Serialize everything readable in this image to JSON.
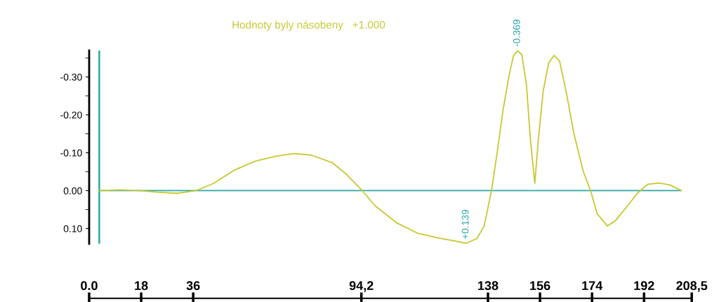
{
  "chart_data": {
    "type": "line",
    "title": "Hodnoty byly násobeny   +1.000",
    "x": [
      3.5,
      10.5,
      17.5,
      23.6,
      30.4,
      37.0,
      43.0,
      50.2,
      57.5,
      64.7,
      70.8,
      76.8,
      84.1,
      88.9,
      94.5,
      98.8,
      106.4,
      113.9,
      121.5,
      126.6,
      130.4,
      134.2,
      136.7,
      139.2,
      141.1,
      143.1,
      145.2,
      146.8,
      148.2,
      149.7,
      151.3,
      152.7,
      154.2,
      155.4,
      157.1,
      159.0,
      160.9,
      162.8,
      165.0,
      167.7,
      171.0,
      173.5,
      175.8,
      179.3,
      182.0,
      186.4,
      189.8,
      193.3,
      197.2,
      201.0,
      204.9
    ],
    "series": [
      {
        "color": "#c8c832",
        "values": [
          0,
          -0.002,
          0,
          0.004,
          0.007,
          0,
          -0.019,
          -0.054,
          -0.078,
          -0.091,
          -0.098,
          -0.094,
          -0.074,
          -0.044,
          0,
          0.039,
          0.085,
          0.113,
          0.126,
          0.133,
          0.139,
          0.126,
          0.093,
          0,
          -0.096,
          -0.207,
          -0.3,
          -0.356,
          -0.369,
          -0.359,
          -0.281,
          -0.133,
          -0.019,
          -0.133,
          -0.263,
          -0.337,
          -0.357,
          -0.341,
          -0.263,
          -0.152,
          -0.05,
          0,
          0.061,
          0.093,
          0.08,
          0.039,
          0.006,
          -0.017,
          -0.02,
          -0.015,
          0
        ]
      }
    ],
    "xlim": [
      0,
      208.5
    ],
    "xticks": [
      {
        "value": 0,
        "label": "0.0"
      },
      18,
      36,
      {
        "value": 94.2,
        "label": "94,2"
      },
      138,
      156,
      174,
      192,
      {
        "value": 208.5,
        "label": "208,5"
      }
    ],
    "ylim": [
      0.14,
      -0.37
    ],
    "yticks": [
      {
        "value": -0.3,
        "label": "-0.30"
      },
      {
        "value": -0.2,
        "label": "-0.20"
      },
      {
        "value": -0.1,
        "label": "-0.10"
      },
      {
        "value": 0,
        "label": "0.00"
      },
      {
        "value": 0.1,
        "label": "0.10"
      }
    ],
    "ref_lines": [
      {
        "axis": "y",
        "value": 0,
        "color": "#2aa8a8"
      },
      {
        "axis": "x",
        "value": 3.5,
        "color": "#2aa8a8"
      }
    ],
    "annotations": [
      {
        "text": "-0.369",
        "x": 148.2,
        "y": -0.369
      },
      {
        "text": "+0.139",
        "x": 130.4,
        "y": 0.139
      }
    ],
    "grid": false,
    "marker": "none",
    "line_style": "solid"
  }
}
